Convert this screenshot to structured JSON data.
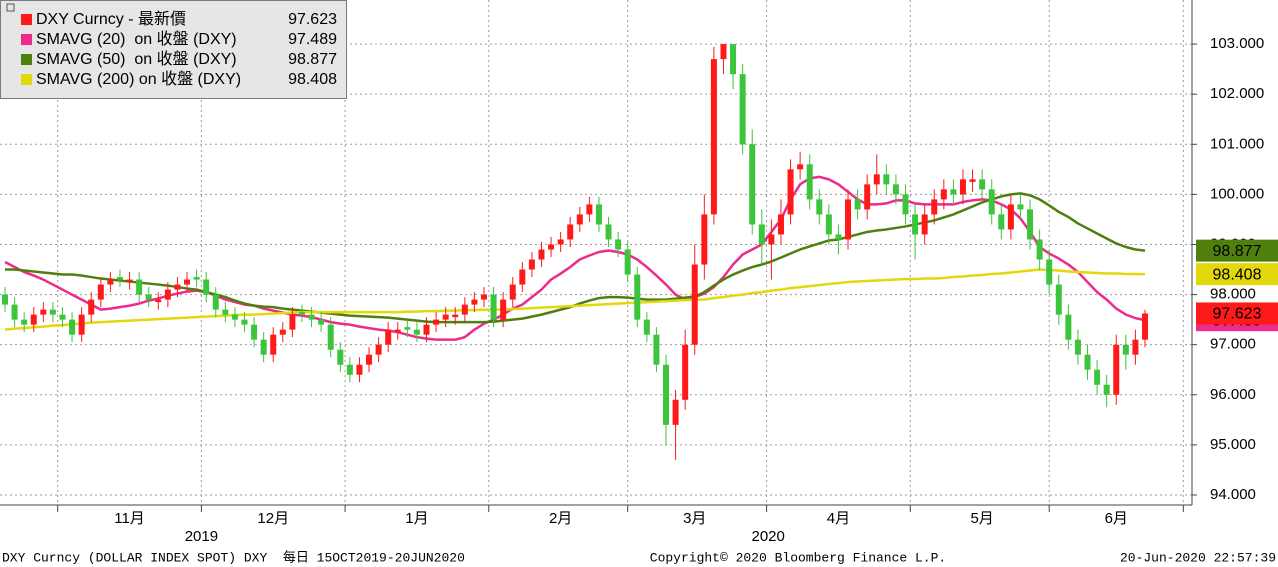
{
  "chart_data": {
    "type": "candlestick",
    "legend": "top-left",
    "grid": true,
    "categories": [
      null,
      null,
      null,
      null,
      null,
      null,
      null,
      null,
      null,
      null,
      null,
      null,
      null,
      "11月",
      null,
      null,
      null,
      null,
      null,
      null,
      null,
      null,
      null,
      null,
      null,
      null,
      null,
      null,
      "12月",
      null,
      null,
      null,
      null,
      null,
      null,
      null,
      null,
      null,
      null,
      null,
      null,
      null,
      null,
      "1月",
      null,
      null,
      null,
      null,
      null,
      null,
      null,
      null,
      null,
      null,
      null,
      null,
      null,
      null,
      "2月",
      null,
      null,
      null,
      null,
      null,
      null,
      null,
      null,
      null,
      null,
      null,
      null,
      null,
      "3月",
      null,
      null,
      null,
      null,
      null,
      null,
      null,
      null,
      null,
      null,
      null,
      null,
      null,
      null,
      "4月",
      null,
      null,
      null,
      null,
      null,
      null,
      null,
      null,
      null,
      null,
      null,
      null,
      null,
      null,
      "5月",
      null,
      null,
      null,
      null,
      null,
      null,
      null,
      null,
      null,
      null,
      null,
      null,
      null,
      "6月",
      null,
      null,
      null
    ],
    "year_labels": [
      "2019",
      "2020"
    ],
    "ylim": [
      93.8,
      103.88
    ],
    "yticks": [
      {
        "value": 94,
        "label": "94.000"
      },
      {
        "value": 95,
        "label": "95.000"
      },
      {
        "value": 96,
        "label": "96.000"
      },
      {
        "value": 97,
        "label": "97.000"
      },
      {
        "value": 98,
        "label": "98.000"
      },
      {
        "value": 99,
        "label": "99.000"
      },
      {
        "value": 100,
        "label": "100.000"
      },
      {
        "value": 101,
        "label": "101.000"
      },
      {
        "value": 102,
        "label": "102.000"
      },
      {
        "value": 103,
        "label": "103.000"
      }
    ],
    "series": [
      {
        "name": "DXY Curncy - 最新價",
        "type": "candlestick",
        "color": "#ff1a1a",
        "down_color": "#3cc43c",
        "open": [
          98.0,
          97.8,
          97.5,
          97.4,
          97.6,
          97.7,
          97.6,
          97.5,
          97.2,
          97.6,
          97.9,
          98.2,
          98.35,
          98.25,
          98.3,
          98.0,
          97.85,
          97.9,
          98.1,
          98.2,
          98.35,
          98.3,
          98.0,
          97.7,
          97.6,
          97.5,
          97.4,
          97.1,
          96.8,
          97.2,
          97.3,
          97.65,
          97.6,
          97.5,
          97.4,
          96.9,
          96.6,
          96.4,
          96.6,
          96.8,
          97.0,
          97.25,
          97.35,
          97.3,
          97.2,
          97.4,
          97.5,
          97.55,
          97.6,
          97.8,
          97.9,
          98.0,
          97.5,
          97.9,
          98.2,
          98.5,
          98.7,
          98.9,
          99.0,
          99.1,
          99.4,
          99.6,
          99.8,
          99.4,
          99.1,
          98.9,
          98.4,
          97.5,
          97.2,
          96.6,
          95.4,
          95.9,
          97.0,
          98.6,
          99.6,
          102.7,
          103.0,
          102.4,
          101.0,
          99.4,
          99.0,
          99.2,
          99.6,
          100.5,
          100.6,
          99.9,
          99.6,
          99.2,
          99.1,
          99.9,
          99.7,
          100.2,
          100.4,
          100.2,
          100.0,
          99.6,
          99.2,
          99.6,
          99.9,
          100.1,
          100.0,
          100.25,
          100.3,
          100.1,
          99.6,
          99.3,
          99.8,
          99.7,
          99.1,
          98.7,
          98.2,
          97.6,
          97.1,
          96.8,
          96.5,
          96.2,
          96.0,
          97.0,
          96.8,
          97.1
        ],
        "high": [
          98.15,
          97.95,
          97.65,
          97.75,
          97.85,
          97.85,
          97.75,
          97.65,
          97.75,
          98.05,
          98.35,
          98.45,
          98.5,
          98.45,
          98.45,
          98.15,
          98.05,
          98.25,
          98.35,
          98.45,
          98.5,
          98.45,
          98.15,
          97.85,
          97.75,
          97.65,
          97.55,
          97.25,
          97.35,
          97.45,
          97.75,
          97.8,
          97.75,
          97.65,
          97.55,
          97.05,
          96.75,
          96.75,
          96.95,
          97.15,
          97.45,
          97.45,
          97.5,
          97.45,
          97.55,
          97.65,
          97.75,
          97.75,
          97.95,
          98.05,
          98.15,
          98.15,
          98.05,
          98.35,
          98.65,
          98.85,
          99.05,
          99.15,
          99.25,
          99.55,
          99.75,
          99.95,
          99.95,
          99.55,
          99.25,
          99.05,
          98.55,
          97.65,
          97.35,
          96.8,
          96.1,
          97.3,
          99.0,
          100.0,
          102.95,
          103.0,
          103.0,
          102.6,
          101.3,
          99.7,
          99.5,
          99.9,
          100.7,
          100.85,
          100.8,
          100.1,
          99.8,
          99.4,
          100.1,
          100.1,
          100.4,
          100.8,
          100.6,
          100.4,
          100.2,
          99.8,
          99.8,
          100.1,
          100.3,
          100.3,
          100.5,
          100.5,
          100.5,
          100.3,
          99.8,
          100.0,
          100.0,
          99.9,
          99.3,
          98.9,
          98.4,
          97.8,
          97.3,
          97.0,
          96.7,
          96.4,
          97.2,
          97.2,
          97.3,
          97.7
        ],
        "low": [
          97.65,
          97.35,
          97.25,
          97.25,
          97.45,
          97.45,
          97.35,
          97.05,
          97.05,
          97.45,
          97.75,
          98.05,
          98.15,
          98.1,
          97.85,
          97.75,
          97.7,
          97.75,
          97.95,
          98.05,
          98.15,
          97.85,
          97.55,
          97.45,
          97.35,
          97.25,
          96.95,
          96.65,
          96.65,
          97.05,
          97.15,
          97.45,
          97.35,
          97.25,
          96.75,
          96.45,
          96.25,
          96.25,
          96.45,
          96.65,
          96.85,
          97.1,
          97.15,
          97.05,
          97.05,
          97.25,
          97.35,
          97.4,
          97.45,
          97.65,
          97.75,
          97.35,
          97.35,
          97.75,
          98.05,
          98.35,
          98.55,
          98.75,
          98.85,
          98.95,
          99.25,
          99.45,
          99.25,
          98.95,
          98.75,
          98.25,
          97.35,
          97.05,
          96.45,
          95.0,
          94.7,
          95.7,
          96.8,
          98.3,
          99.4,
          102.4,
          102.1,
          100.8,
          99.2,
          98.6,
          98.3,
          99.0,
          99.4,
          100.3,
          99.7,
          99.4,
          99.0,
          98.8,
          98.9,
          99.5,
          99.5,
          100.0,
          100.0,
          99.8,
          99.4,
          98.7,
          99.0,
          99.4,
          99.7,
          99.8,
          99.8,
          100.05,
          99.9,
          99.4,
          99.1,
          99.1,
          99.5,
          98.9,
          98.5,
          98.0,
          97.4,
          96.9,
          96.6,
          96.3,
          96.0,
          95.75,
          95.8,
          96.5,
          96.6,
          96.95
        ],
        "close": [
          97.8,
          97.5,
          97.4,
          97.6,
          97.7,
          97.6,
          97.5,
          97.2,
          97.6,
          97.9,
          98.2,
          98.3,
          98.3,
          98.3,
          98.0,
          97.9,
          97.9,
          98.1,
          98.2,
          98.3,
          98.3,
          98.0,
          97.7,
          97.6,
          97.5,
          97.4,
          97.1,
          96.8,
          97.2,
          97.3,
          97.6,
          97.6,
          97.5,
          97.4,
          96.9,
          96.6,
          96.4,
          96.6,
          96.8,
          97.0,
          97.3,
          97.3,
          97.3,
          97.2,
          97.4,
          97.5,
          97.6,
          97.6,
          97.8,
          97.9,
          98.0,
          97.5,
          97.9,
          98.2,
          98.5,
          98.7,
          98.9,
          99.0,
          99.1,
          99.4,
          99.6,
          99.8,
          99.4,
          99.1,
          98.9,
          98.4,
          97.5,
          97.2,
          96.6,
          95.4,
          95.9,
          97.0,
          98.6,
          99.6,
          102.7,
          103.0,
          102.4,
          101.0,
          99.4,
          99.0,
          99.2,
          99.6,
          100.5,
          100.6,
          99.9,
          99.6,
          99.2,
          99.1,
          99.9,
          99.7,
          100.2,
          100.4,
          100.2,
          100.0,
          99.6,
          99.2,
          99.6,
          99.9,
          100.1,
          100.0,
          100.3,
          100.3,
          100.1,
          99.6,
          99.3,
          99.8,
          99.7,
          99.1,
          98.7,
          98.2,
          97.6,
          97.1,
          96.8,
          96.5,
          96.2,
          96.0,
          97.0,
          96.8,
          97.1,
          97.623
        ]
      },
      {
        "name": "SMAVG (20)  on 收盤 (DXY)",
        "type": "line",
        "color": "#ee2a8c",
        "values": [
          98.65,
          98.55,
          98.45,
          98.38,
          98.3,
          98.2,
          98.1,
          98.0,
          97.9,
          97.8,
          97.7,
          97.72,
          97.75,
          97.78,
          97.82,
          97.88,
          97.92,
          97.98,
          98.02,
          98.06,
          98.08,
          98.05,
          97.98,
          97.9,
          97.85,
          97.8,
          97.78,
          97.72,
          97.68,
          97.64,
          97.6,
          97.58,
          97.55,
          97.5,
          97.45,
          97.42,
          97.4,
          97.36,
          97.33,
          97.3,
          97.28,
          97.25,
          97.2,
          97.15,
          97.12,
          97.1,
          97.1,
          97.1,
          97.15,
          97.3,
          97.42,
          97.5,
          97.6,
          97.72,
          97.8,
          97.95,
          98.1,
          98.3,
          98.42,
          98.55,
          98.7,
          98.78,
          98.85,
          98.88,
          98.85,
          98.8,
          98.7,
          98.55,
          98.38,
          98.2,
          98.0,
          97.9,
          97.95,
          98.02,
          98.15,
          98.35,
          98.6,
          98.8,
          98.9,
          99.0,
          99.25,
          99.5,
          99.9,
          100.2,
          100.32,
          100.35,
          100.3,
          100.2,
          100.05,
          99.9,
          99.8,
          99.8,
          99.82,
          99.88,
          99.88,
          99.82,
          99.8,
          99.8,
          99.8,
          99.8,
          99.85,
          99.88,
          99.9,
          99.88,
          99.8,
          99.7,
          99.52,
          99.25,
          98.95,
          98.82,
          98.72,
          98.6,
          98.45,
          98.25,
          98.05,
          97.9,
          97.72,
          97.6,
          97.53,
          97.489
        ]
      },
      {
        "name": "SMAVG (50)  on 收盤 (DXY)",
        "type": "line",
        "color": "#4f800e",
        "values": [
          98.5,
          98.5,
          98.48,
          98.46,
          98.44,
          98.42,
          98.4,
          98.4,
          98.38,
          98.35,
          98.32,
          98.3,
          98.28,
          98.26,
          98.24,
          98.22,
          98.2,
          98.18,
          98.15,
          98.12,
          98.1,
          98.05,
          98.0,
          97.95,
          97.88,
          97.82,
          97.78,
          97.76,
          97.75,
          97.72,
          97.7,
          97.68,
          97.66,
          97.64,
          97.62,
          97.6,
          97.58,
          97.57,
          97.56,
          97.55,
          97.54,
          97.52,
          97.5,
          97.48,
          97.46,
          97.45,
          97.45,
          97.45,
          97.45,
          97.45,
          97.45,
          97.46,
          97.48,
          97.5,
          97.52,
          97.56,
          97.6,
          97.65,
          97.7,
          97.75,
          97.82,
          97.88,
          97.93,
          97.95,
          97.95,
          97.94,
          97.92,
          97.9,
          97.9,
          97.9,
          97.92,
          97.94,
          97.96,
          98.05,
          98.18,
          98.3,
          98.4,
          98.48,
          98.55,
          98.6,
          98.66,
          98.74,
          98.82,
          98.9,
          98.96,
          99.02,
          99.08,
          99.1,
          99.15,
          99.2,
          99.25,
          99.28,
          99.3,
          99.33,
          99.36,
          99.4,
          99.44,
          99.48,
          99.54,
          99.6,
          99.68,
          99.76,
          99.84,
          99.9,
          99.96,
          100.0,
          100.02,
          99.98,
          99.9,
          99.78,
          99.65,
          99.55,
          99.42,
          99.32,
          99.22,
          99.12,
          99.02,
          98.95,
          98.9,
          98.877
        ]
      },
      {
        "name": "SMAVG (200) on 收盤 (DXY)",
        "type": "line",
        "color": "#e2d80c",
        "values": [
          97.3,
          97.32,
          97.33,
          97.35,
          97.36,
          97.38,
          97.39,
          97.41,
          97.42,
          97.44,
          97.45,
          97.46,
          97.47,
          97.48,
          97.49,
          97.5,
          97.51,
          97.52,
          97.53,
          97.54,
          97.55,
          97.56,
          97.57,
          97.58,
          97.59,
          97.6,
          97.6,
          97.61,
          97.62,
          97.63,
          97.64,
          97.65,
          97.65,
          97.65,
          97.65,
          97.65,
          97.65,
          97.65,
          97.65,
          97.65,
          97.65,
          97.65,
          97.66,
          97.66,
          97.67,
          97.67,
          97.68,
          97.68,
          97.69,
          97.69,
          97.7,
          97.7,
          97.7,
          97.71,
          97.72,
          97.73,
          97.74,
          97.75,
          97.76,
          97.77,
          97.78,
          97.79,
          97.8,
          97.81,
          97.82,
          97.83,
          97.84,
          97.85,
          97.86,
          97.87,
          97.88,
          97.89,
          97.9,
          97.9,
          97.93,
          97.95,
          97.98,
          98.0,
          98.03,
          98.05,
          98.08,
          98.1,
          98.13,
          98.15,
          98.17,
          98.19,
          98.21,
          98.23,
          98.25,
          98.26,
          98.27,
          98.28,
          98.29,
          98.3,
          98.31,
          98.31,
          98.32,
          98.32,
          98.33,
          98.35,
          98.36,
          98.38,
          98.39,
          98.41,
          98.42,
          98.44,
          98.46,
          98.48,
          98.5,
          98.49,
          98.48,
          98.46,
          98.45,
          98.44,
          98.43,
          98.42,
          98.42,
          98.41,
          98.41,
          98.408
        ]
      }
    ]
  },
  "footer": {
    "left": "DXY Curncy (DOLLAR INDEX SPOT) DXY  每日 15OCT2019-20JUN2020",
    "center": "Copyright© 2020 Bloomberg Finance L.P.",
    "right": "20-Jun-2020 22:57:39"
  }
}
